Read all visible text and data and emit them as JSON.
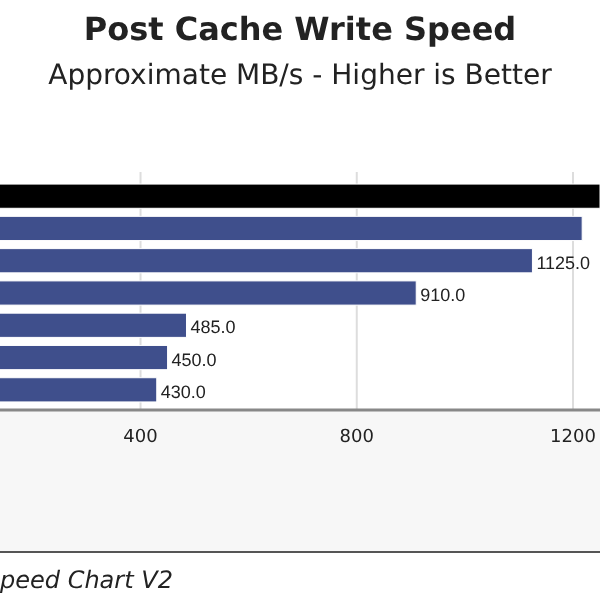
{
  "chart_data": {
    "type": "bar",
    "orientation": "horizontal",
    "title": "Post Cache Write Speed",
    "subtitle": "Approximate MB/s - Higher is Better",
    "categories": [
      null,
      null,
      null,
      null,
      null,
      null,
      null
    ],
    "values": [
      1250,
      1217,
      1125,
      910,
      485,
      450,
      430
    ],
    "colors": [
      "#000000",
      "#3f4f8c",
      "#3f4f8c",
      "#3f4f8c",
      "#3f4f8c",
      "#3f4f8c",
      "#3f4f8c"
    ],
    "value_labels": [
      null,
      null,
      "1125.0",
      "910.0",
      "485.0",
      "450.0",
      "430.0"
    ],
    "xlim": [
      140,
      1250
    ],
    "xticks": [
      400,
      800,
      1200
    ],
    "grid": "x",
    "annotations": [
      "peed Chart V2"
    ]
  }
}
